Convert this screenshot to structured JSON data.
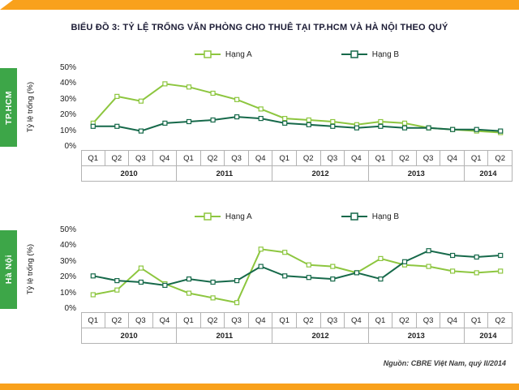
{
  "page": {
    "title": "BIỂU ĐỒ 3: TỶ LỆ TRỐNG VĂN PHÒNG CHO THUÊ TẠI TP.HCM VÀ HÀ NỘI THEO QUÝ",
    "source": "Nguồn: CBRE Việt Nam, quý II/2014",
    "accent_orange": "#F9A11C",
    "region_strip_green": "#3DA648"
  },
  "chart_data": [
    {
      "type": "line",
      "region_label": "TP.HCM",
      "ylabel": "Tỷ lệ trống (%)",
      "ylim": [
        0,
        50
      ],
      "yticks": [
        "0%",
        "10%",
        "20%",
        "30%",
        "40%",
        "50%"
      ],
      "grid": false,
      "legend_position": "top",
      "categories": [
        "Q1",
        "Q2",
        "Q3",
        "Q4",
        "Q1",
        "Q2",
        "Q3",
        "Q4",
        "Q1",
        "Q2",
        "Q3",
        "Q4",
        "Q1",
        "Q2",
        "Q3",
        "Q4",
        "Q1",
        "Q2"
      ],
      "year_groups": [
        {
          "label": "2010",
          "span": 4
        },
        {
          "label": "2011",
          "span": 4
        },
        {
          "label": "2012",
          "span": 4
        },
        {
          "label": "2013",
          "span": 4
        },
        {
          "label": "2014",
          "span": 2
        }
      ],
      "series": [
        {
          "name": "Hạng A",
          "color": "#8DC63F",
          "values": [
            15,
            32,
            29,
            40,
            38,
            34,
            30,
            24,
            18,
            17,
            16,
            14,
            16,
            15,
            12,
            11,
            10,
            9
          ]
        },
        {
          "name": "Hạng B",
          "color": "#16694A",
          "values": [
            13,
            13,
            10,
            15,
            16,
            17,
            19,
            18,
            15,
            14,
            13,
            12,
            13,
            12,
            12,
            11,
            11,
            10
          ]
        }
      ]
    },
    {
      "type": "line",
      "region_label": "Hà Nội",
      "ylabel": "Tỷ lệ trống (%)",
      "ylim": [
        0,
        50
      ],
      "yticks": [
        "0%",
        "10%",
        "20%",
        "30%",
        "40%",
        "50%"
      ],
      "grid": false,
      "legend_position": "top",
      "categories": [
        "Q1",
        "Q2",
        "Q3",
        "Q4",
        "Q1",
        "Q2",
        "Q3",
        "Q4",
        "Q1",
        "Q2",
        "Q3",
        "Q4",
        "Q1",
        "Q2",
        "Q3",
        "Q4",
        "Q1",
        "Q2"
      ],
      "year_groups": [
        {
          "label": "2010",
          "span": 4
        },
        {
          "label": "2011",
          "span": 4
        },
        {
          "label": "2012",
          "span": 4
        },
        {
          "label": "2013",
          "span": 4
        },
        {
          "label": "2014",
          "span": 2
        }
      ],
      "series": [
        {
          "name": "Hạng A",
          "color": "#8DC63F",
          "values": [
            9,
            12,
            26,
            16,
            10,
            7,
            4,
            38,
            36,
            28,
            27,
            23,
            32,
            28,
            27,
            24,
            23,
            24
          ]
        },
        {
          "name": "Hạng B",
          "color": "#16694A",
          "values": [
            21,
            18,
            17,
            15,
            19,
            17,
            18,
            27,
            21,
            20,
            19,
            23,
            19,
            30,
            37,
            34,
            33,
            34
          ]
        }
      ]
    }
  ]
}
